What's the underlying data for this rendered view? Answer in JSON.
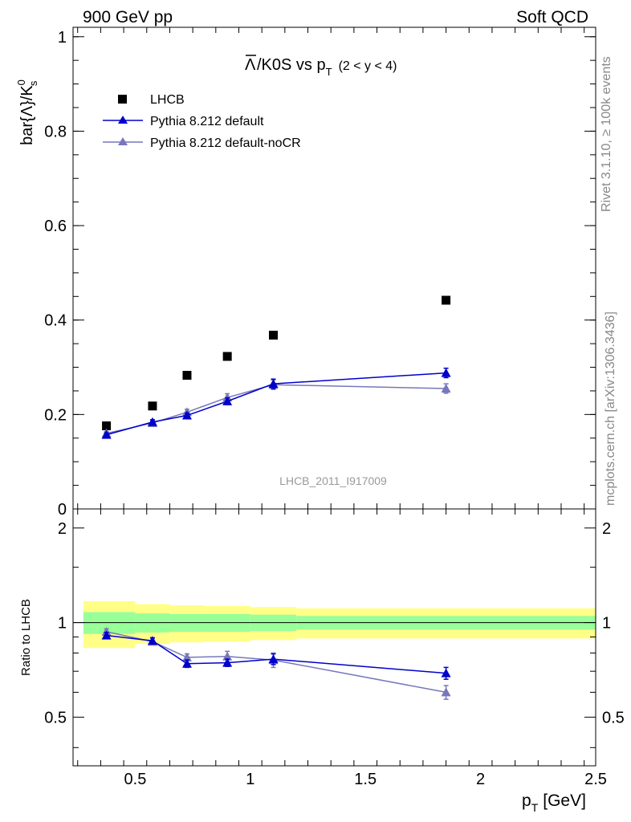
{
  "header": {
    "left": "900 GeV pp",
    "right": "Soft QCD"
  },
  "side_labels": {
    "rivet": "Rivet 3.1.10, ≥ 100k events",
    "mcplots": "mcplots.cern.ch [arXiv:1306.3436]"
  },
  "colors": {
    "data": "#000000",
    "pythia_default": "#0000cc",
    "pythia_nocr": "#7777bb",
    "band_inner": "#99ff99",
    "band_outer": "#ffff88"
  },
  "icons": {
    "data_marker": "filled-square",
    "mc_marker": "filled-triangle"
  },
  "chart_data": [
    {
      "type": "scatter",
      "title": "Λ̄/K0S vs p_T (2 < y < 4)",
      "title_parts": {
        "main": "/K0S vs p",
        "sub": "T",
        "suffix": "(2 < y < 4)"
      },
      "ylabel": "bar{Λ}/K",
      "ylabel_sup": "0",
      "ylabel_sub": "s",
      "watermark": "LHCB_2011_I917009",
      "xlim": [
        0.23,
        2.5
      ],
      "ylim": [
        0,
        1.02
      ],
      "y_ticks": [
        "0",
        "0.2",
        "0.4",
        "0.6",
        "0.8",
        "1"
      ],
      "y_tick_values": [
        0,
        0.2,
        0.4,
        0.6,
        0.8,
        1.0
      ],
      "legend_position": "top-left",
      "x": [
        0.375,
        0.575,
        0.725,
        0.9,
        1.1,
        1.85
      ],
      "series": [
        {
          "name": "LHCB",
          "marker": "square",
          "values": [
            0.176,
            0.218,
            0.283,
            0.323,
            0.368,
            0.442
          ]
        },
        {
          "name": "Pythia 8.212 default",
          "marker": "triangle",
          "values": [
            0.157,
            0.184,
            0.198,
            0.228,
            0.265,
            0.288
          ],
          "err": [
            0.004,
            0.005,
            0.005,
            0.007,
            0.01,
            0.01
          ]
        },
        {
          "name": "Pythia 8.212 default-noCR",
          "marker": "triangle",
          "values": [
            0.16,
            0.182,
            0.205,
            0.236,
            0.263,
            0.255
          ],
          "err": [
            0.004,
            0.005,
            0.006,
            0.008,
            0.01,
            0.01
          ]
        }
      ]
    },
    {
      "type": "line",
      "ylabel": "Ratio to LHCB",
      "xlabel": "p",
      "xlabel_sub": "T",
      "xlabel_unit": "[GeV]",
      "xlim": [
        0.23,
        2.5
      ],
      "ylim": [
        0.35,
        2.3
      ],
      "x_ticks": [
        "0.5",
        "1",
        "1.5",
        "2",
        "2.5"
      ],
      "x_tick_values": [
        0.5,
        1.0,
        1.5,
        2.0,
        2.5
      ],
      "y_ticks": [
        "0.5",
        "1",
        "2"
      ],
      "y_tick_values": [
        0.5,
        1.0,
        2.0
      ],
      "reference_line": 1.0,
      "bands": [
        {
          "x_lo": 0.275,
          "x_hi": 0.5,
          "inner": [
            0.92,
            1.08
          ],
          "outer": [
            0.83,
            1.17
          ]
        },
        {
          "x_lo": 0.5,
          "x_hi": 0.65,
          "inner": [
            0.93,
            1.07
          ],
          "outer": [
            0.855,
            1.145
          ]
        },
        {
          "x_lo": 0.65,
          "x_hi": 0.8,
          "inner": [
            0.935,
            1.065
          ],
          "outer": [
            0.865,
            1.135
          ]
        },
        {
          "x_lo": 0.8,
          "x_hi": 1.0,
          "inner": [
            0.935,
            1.065
          ],
          "outer": [
            0.87,
            1.13
          ]
        },
        {
          "x_lo": 1.0,
          "x_hi": 1.2,
          "inner": [
            0.94,
            1.06
          ],
          "outer": [
            0.88,
            1.12
          ]
        },
        {
          "x_lo": 1.2,
          "x_hi": 2.5,
          "inner": [
            0.95,
            1.05
          ],
          "outer": [
            0.89,
            1.11
          ]
        }
      ],
      "x": [
        0.375,
        0.575,
        0.725,
        0.9,
        1.1,
        1.85
      ],
      "series": [
        {
          "name": "Pythia 8.212 default",
          "values": [
            0.91,
            0.875,
            0.74,
            0.745,
            0.765,
            0.69
          ],
          "err": [
            0.02,
            0.02,
            0.02,
            0.02,
            0.03,
            0.03
          ]
        },
        {
          "name": "Pythia 8.212 default-noCR",
          "values": [
            0.935,
            0.87,
            0.775,
            0.78,
            0.76,
            0.6
          ],
          "err": [
            0.02,
            0.02,
            0.02,
            0.03,
            0.04,
            0.03
          ]
        }
      ]
    }
  ]
}
